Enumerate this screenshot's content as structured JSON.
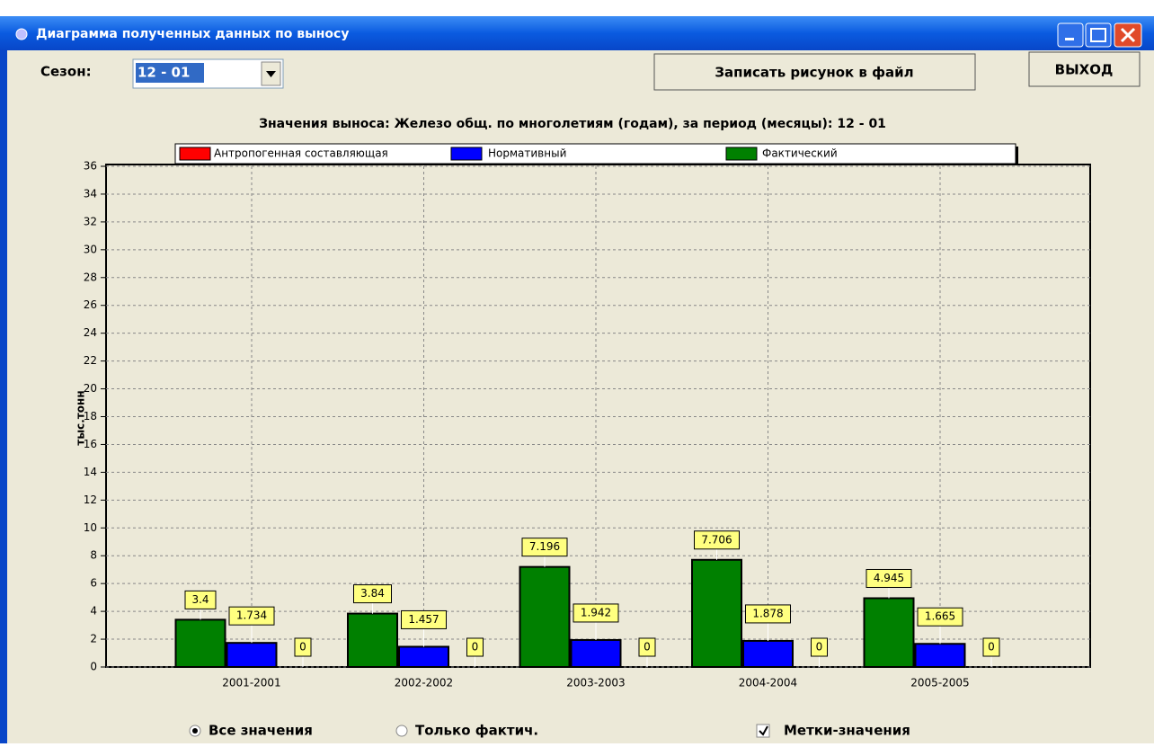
{
  "window": {
    "title": "Диаграмма полученных данных по выносу"
  },
  "controls": {
    "season_label": "Сезон:",
    "season_value": "12 - 01",
    "save_button": "Записать рисунок в файл",
    "exit_button": "ВЫХОД",
    "radio_all": "Все значения",
    "radio_fact": "Только фактич.",
    "checkbox_labels": "Метки-значения"
  },
  "chart_data": {
    "type": "bar",
    "title": "Значения выноса: Железо общ. по многолетиям (годам), за период (месяцы): 12 - 01",
    "y_label": "тыс.тонн",
    "categories": [
      "2001-2001",
      "2002-2002",
      "2003-2003",
      "2004-2004",
      "2005-2005"
    ],
    "series": [
      {
        "name": "Антропогенная составляющая",
        "color": "#ff0000",
        "values": [
          0,
          0,
          0,
          0,
          0
        ]
      },
      {
        "name": "Нормативный",
        "color": "#0000ff",
        "values": [
          1.734,
          1.457,
          1.942,
          1.878,
          1.665
        ]
      },
      {
        "name": "Фактический",
        "color": "#008000",
        "values": [
          3.4,
          3.84,
          7.196,
          7.706,
          4.945
        ]
      }
    ],
    "ylim": [
      0,
      36
    ],
    "yticks": [
      0,
      2,
      4,
      6,
      8,
      10,
      12,
      14,
      16,
      18,
      20,
      22,
      24,
      26,
      28,
      30,
      32,
      34,
      36
    ],
    "grid": true,
    "value_labels_shown": true
  }
}
